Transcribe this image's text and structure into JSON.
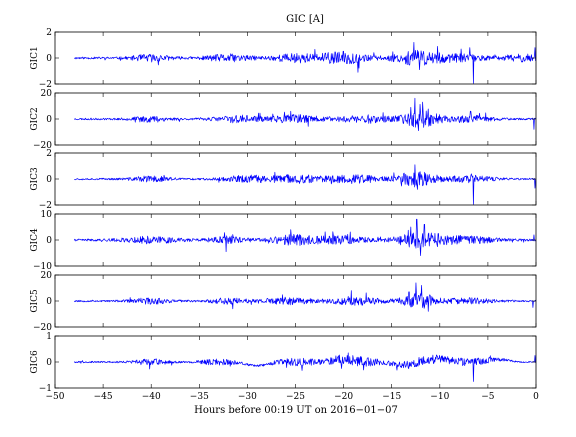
{
  "chart_data": {
    "type": "line",
    "title": "GIC [A]",
    "xlabel": "Hours before  00:19 UT on 2016−01−07",
    "xlim": [
      -50,
      0
    ],
    "x_ticks": [
      -50,
      -45,
      -40,
      -35,
      -30,
      -25,
      -20,
      -15,
      -10,
      -5,
      0
    ],
    "x_tick_labels": [
      "−50",
      "−45",
      "−40",
      "−35",
      "−30",
      "−25",
      "−20",
      "−15",
      "−10",
      "−5",
      "0"
    ],
    "data_x_range": [
      -48,
      0
    ],
    "line_color": "#0000ff",
    "grid": false,
    "panels": [
      {
        "ylabel": "GIC1",
        "ylim": [
          -2,
          2
        ],
        "y_ticks": [
          -2,
          0,
          2
        ],
        "y_tick_labels": [
          "−2",
          "0",
          "2"
        ],
        "base_noise": 0.08,
        "seed": 11,
        "bursts": [
          {
            "t": -40,
            "w": 2.0,
            "a": 0.25
          },
          {
            "t": -32,
            "w": 2.5,
            "a": 0.25
          },
          {
            "t": -25,
            "w": 2.5,
            "a": 0.3
          },
          {
            "t": -20,
            "w": 2.5,
            "a": 0.45
          },
          {
            "t": -12.5,
            "w": 2.5,
            "a": 0.5
          },
          {
            "t": -8,
            "w": 3.0,
            "a": 0.25
          },
          {
            "t": -1.5,
            "w": 2.0,
            "a": 0.25
          }
        ],
        "spikes": [
          {
            "t": -18.5,
            "v": -1.1
          },
          {
            "t": -12.7,
            "v": 1.2
          },
          {
            "t": -12.1,
            "v": -0.9
          },
          {
            "t": -6.5,
            "v": -1.95
          },
          {
            "t": -6.9,
            "v": 0.8
          },
          {
            "t": -0.1,
            "v": 0.8
          }
        ]
      },
      {
        "ylabel": "GIC2",
        "ylim": [
          -20,
          20
        ],
        "y_ticks": [
          -20,
          0,
          20
        ],
        "y_tick_labels": [
          "−20",
          "0",
          "20"
        ],
        "base_noise": 0.7,
        "seed": 23,
        "bursts": [
          {
            "t": -40,
            "w": 2.0,
            "a": 2.0
          },
          {
            "t": -31,
            "w": 2.5,
            "a": 2.5
          },
          {
            "t": -25,
            "w": 2.5,
            "a": 3.0
          },
          {
            "t": -18,
            "w": 3.0,
            "a": 3.0
          },
          {
            "t": -12,
            "w": 2.0,
            "a": 6.0
          },
          {
            "t": -7,
            "w": 2.5,
            "a": 2.5
          }
        ],
        "spikes": [
          {
            "t": -25.5,
            "v": 6
          },
          {
            "t": -12.6,
            "v": 16
          },
          {
            "t": -12.2,
            "v": -9
          },
          {
            "t": -11.8,
            "v": 13
          },
          {
            "t": -13.0,
            "v": 9
          },
          {
            "t": -6.8,
            "v": 6
          },
          {
            "t": -0.2,
            "v": -8
          }
        ]
      },
      {
        "ylabel": "GIC3",
        "ylim": [
          -2,
          2
        ],
        "y_ticks": [
          -2,
          0,
          2
        ],
        "y_tick_labels": [
          "−2",
          "0",
          "2"
        ],
        "base_noise": 0.07,
        "seed": 37,
        "bursts": [
          {
            "t": -40,
            "w": 2.0,
            "a": 0.2
          },
          {
            "t": -30,
            "w": 2.5,
            "a": 0.25
          },
          {
            "t": -25,
            "w": 2.5,
            "a": 0.3
          },
          {
            "t": -19,
            "w": 3.0,
            "a": 0.3
          },
          {
            "t": -12.5,
            "w": 2.0,
            "a": 0.55
          },
          {
            "t": -7,
            "w": 2.5,
            "a": 0.25
          }
        ],
        "spikes": [
          {
            "t": -12.6,
            "v": 1.1
          },
          {
            "t": -12.3,
            "v": -0.8
          },
          {
            "t": -6.5,
            "v": -1.95
          },
          {
            "t": -6.7,
            "v": 0.4
          },
          {
            "t": -0.1,
            "v": -0.7
          }
        ]
      },
      {
        "ylabel": "GIC4",
        "ylim": [
          -10,
          10
        ],
        "y_ticks": [
          -10,
          0,
          10
        ],
        "y_tick_labels": [
          "−10",
          "0",
          "10"
        ],
        "base_noise": 0.4,
        "seed": 41,
        "bursts": [
          {
            "t": -40,
            "w": 3.0,
            "a": 1.2
          },
          {
            "t": -32,
            "w": 2.0,
            "a": 1.2
          },
          {
            "t": -25,
            "w": 2.5,
            "a": 1.8
          },
          {
            "t": -20,
            "w": 2.5,
            "a": 1.5
          },
          {
            "t": -12,
            "w": 2.5,
            "a": 3.0
          },
          {
            "t": -7,
            "w": 3.0,
            "a": 1.2
          }
        ],
        "spikes": [
          {
            "t": -32.2,
            "v": -4.5
          },
          {
            "t": -25.5,
            "v": 4
          },
          {
            "t": -12.4,
            "v": 8
          },
          {
            "t": -12.0,
            "v": -6
          },
          {
            "t": -11.6,
            "v": 6
          },
          {
            "t": -13.0,
            "v": 5
          },
          {
            "t": -0.2,
            "v": 2
          }
        ]
      },
      {
        "ylabel": "GIC5",
        "ylim": [
          -20,
          20
        ],
        "y_ticks": [
          -20,
          0,
          20
        ],
        "y_tick_labels": [
          "−20",
          "0",
          "20"
        ],
        "base_noise": 0.7,
        "seed": 53,
        "bursts": [
          {
            "t": -40,
            "w": 2.0,
            "a": 2.0
          },
          {
            "t": -32,
            "w": 2.0,
            "a": 2.0
          },
          {
            "t": -26,
            "w": 2.5,
            "a": 2.5
          },
          {
            "t": -19,
            "w": 3.0,
            "a": 3.0
          },
          {
            "t": -12,
            "w": 2.0,
            "a": 5.5
          },
          {
            "t": -7,
            "w": 2.5,
            "a": 2.0
          }
        ],
        "spikes": [
          {
            "t": -31.5,
            "v": -6
          },
          {
            "t": -19.2,
            "v": 8
          },
          {
            "t": -12.5,
            "v": 14
          },
          {
            "t": -11.9,
            "v": 12
          },
          {
            "t": -11.2,
            "v": -8
          },
          {
            "t": -13.2,
            "v": 7
          },
          {
            "t": -0.3,
            "v": -5
          }
        ]
      },
      {
        "ylabel": "GIC6",
        "ylim": [
          -1,
          1
        ],
        "y_ticks": [
          -1,
          0,
          1
        ],
        "y_tick_labels": [
          "−1",
          "0",
          "1"
        ],
        "base_noise": 0.03,
        "seed": 67,
        "bursts": [
          {
            "t": -40,
            "w": 2.0,
            "a": 0.1
          },
          {
            "t": -33,
            "w": 2.0,
            "a": 0.1
          },
          {
            "t": -25,
            "w": 2.5,
            "a": 0.12
          },
          {
            "t": -19,
            "w": 3.0,
            "a": 0.18
          },
          {
            "t": -12,
            "w": 2.5,
            "a": 0.15
          },
          {
            "t": -7,
            "w": 3.0,
            "a": 0.12
          }
        ],
        "spikes": [
          {
            "t": -19.5,
            "v": 0.35
          },
          {
            "t": -20.2,
            "v": -0.25
          },
          {
            "t": -6.5,
            "v": -0.75
          },
          {
            "t": -0.1,
            "v": 0.25
          }
        ],
        "drift": [
          {
            "t": -29,
            "w": 1.5,
            "v": -0.15
          },
          {
            "t": -20,
            "w": 1.5,
            "v": 0.12
          },
          {
            "t": -14,
            "w": 1.5,
            "v": -0.1
          },
          {
            "t": -10,
            "w": 1.5,
            "v": 0.12
          },
          {
            "t": -4,
            "w": 1.5,
            "v": 0.1
          }
        ]
      }
    ]
  }
}
